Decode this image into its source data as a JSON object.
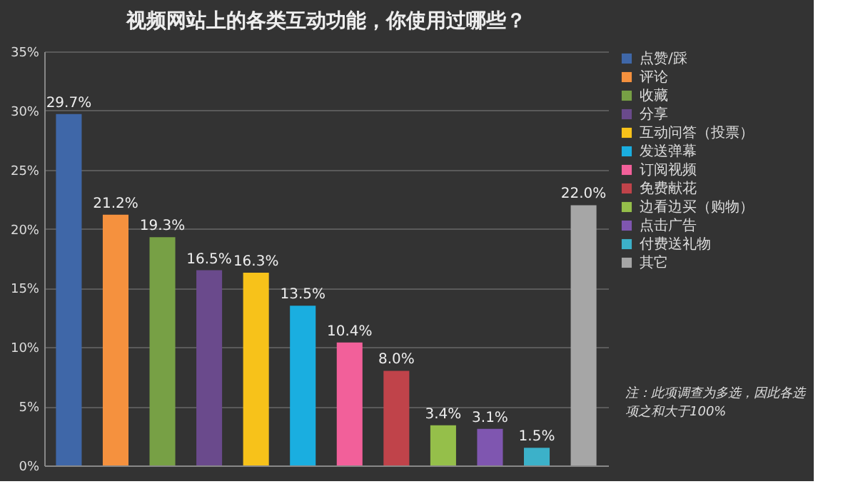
{
  "chart_data": {
    "type": "bar",
    "title": "视频网站上的各类互动功能，你使用过哪些？",
    "categories": [
      null,
      null,
      null,
      null,
      null,
      null,
      null,
      null,
      null,
      null,
      null,
      null
    ],
    "series": [
      {
        "name": "点赞/踩",
        "color": "#3f67a8",
        "values": [
          29.7,
          null,
          null,
          null,
          null,
          null,
          null,
          null,
          null,
          null,
          null,
          null
        ],
        "value_labels": [
          "29.7%",
          null,
          null,
          null,
          null,
          null,
          null,
          null,
          null,
          null,
          null,
          null
        ]
      },
      {
        "name": "评论",
        "color": "#f5913e",
        "values": [
          null,
          21.2,
          null,
          null,
          null,
          null,
          null,
          null,
          null,
          null,
          null,
          null
        ],
        "value_labels": [
          null,
          "21.2%",
          null,
          null,
          null,
          null,
          null,
          null,
          null,
          null,
          null,
          null
        ]
      },
      {
        "name": "收藏",
        "color": "#77a045",
        "values": [
          null,
          null,
          19.3,
          null,
          null,
          null,
          null,
          null,
          null,
          null,
          null,
          null
        ],
        "value_labels": [
          null,
          null,
          "19.3%",
          null,
          null,
          null,
          null,
          null,
          null,
          null,
          null,
          null
        ]
      },
      {
        "name": "分享",
        "color": "#6a4a8c",
        "values": [
          null,
          null,
          null,
          16.5,
          null,
          null,
          null,
          null,
          null,
          null,
          null,
          null
        ],
        "value_labels": [
          null,
          null,
          null,
          "16.5%",
          null,
          null,
          null,
          null,
          null,
          null,
          null,
          null
        ]
      },
      {
        "name": "互动问答（投票）",
        "color": "#f7c21a",
        "values": [
          null,
          null,
          null,
          null,
          16.3,
          null,
          null,
          null,
          null,
          null,
          null,
          null
        ],
        "value_labels": [
          null,
          null,
          null,
          null,
          "16.3%",
          null,
          null,
          null,
          null,
          null,
          null,
          null
        ]
      },
      {
        "name": "发送弹幕",
        "color": "#1aaee0",
        "values": [
          null,
          null,
          null,
          null,
          null,
          13.5,
          null,
          null,
          null,
          null,
          null,
          null
        ],
        "value_labels": [
          null,
          null,
          null,
          null,
          null,
          "13.5%",
          null,
          null,
          null,
          null,
          null,
          null
        ]
      },
      {
        "name": "订阅视频",
        "color": "#f2609a",
        "values": [
          null,
          null,
          null,
          null,
          null,
          null,
          10.4,
          null,
          null,
          null,
          null,
          null
        ],
        "value_labels": [
          null,
          null,
          null,
          null,
          null,
          null,
          "10.4%",
          null,
          null,
          null,
          null,
          null
        ]
      },
      {
        "name": "免费献花",
        "color": "#c0434a",
        "values": [
          null,
          null,
          null,
          null,
          null,
          null,
          null,
          8.0,
          null,
          null,
          null,
          null
        ],
        "value_labels": [
          null,
          null,
          null,
          null,
          null,
          null,
          null,
          "8.0%",
          null,
          null,
          null,
          null
        ]
      },
      {
        "name": "边看边买（购物）",
        "color": "#95bf4a",
        "values": [
          null,
          null,
          null,
          null,
          null,
          null,
          null,
          null,
          3.4,
          null,
          null,
          null
        ],
        "value_labels": [
          null,
          null,
          null,
          null,
          null,
          null,
          null,
          null,
          "3.4%",
          null,
          null,
          null
        ]
      },
      {
        "name": "点击广告",
        "color": "#7f56b0",
        "values": [
          null,
          null,
          null,
          null,
          null,
          null,
          null,
          null,
          null,
          3.1,
          null,
          null
        ],
        "value_labels": [
          null,
          null,
          null,
          null,
          null,
          null,
          null,
          null,
          null,
          "3.1%",
          null,
          null
        ]
      },
      {
        "name": "付费送礼物",
        "color": "#3cb1c9",
        "values": [
          null,
          null,
          null,
          null,
          null,
          null,
          null,
          null,
          null,
          null,
          1.5,
          null
        ],
        "value_labels": [
          null,
          null,
          null,
          null,
          null,
          null,
          null,
          null,
          null,
          null,
          "1.5%",
          null
        ]
      },
      {
        "name": "其它",
        "color": "#a6a6a6",
        "values": [
          null,
          null,
          null,
          null,
          null,
          null,
          null,
          null,
          null,
          null,
          null,
          22.0
        ],
        "value_labels": [
          null,
          null,
          null,
          null,
          null,
          null,
          null,
          null,
          null,
          null,
          null,
          "22.0%"
        ]
      }
    ],
    "ylim": [
      0,
      35
    ],
    "yticks": [
      {
        "value": 0,
        "label": "0%"
      },
      {
        "value": 5,
        "label": "5%"
      },
      {
        "value": 10,
        "label": "10%"
      },
      {
        "value": 15,
        "label": "15%"
      },
      {
        "value": 20,
        "label": "20%"
      },
      {
        "value": 25,
        "label": "25%"
      },
      {
        "value": 30,
        "label": "30%"
      },
      {
        "value": 35,
        "label": "35%"
      }
    ],
    "grid": "y",
    "legend": "right",
    "tick_labels": "y",
    "annotations": [
      "注：此项调查为多选，因此各选项之和大于100%"
    ]
  }
}
